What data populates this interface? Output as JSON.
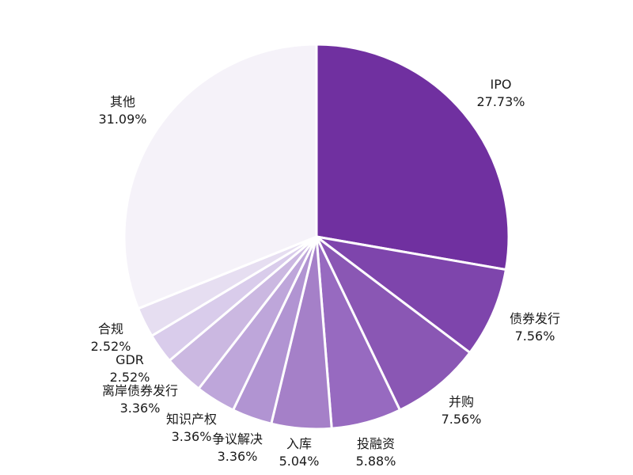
{
  "chart_data": {
    "type": "pie",
    "title": "",
    "start": "12 o'clock, clockwise",
    "legend": "none (labels beside slices)",
    "slices": [
      {
        "label": "IPO",
        "value": 27.73,
        "pct_text": "27.73%",
        "color": "#7030a0"
      },
      {
        "label": "债券发行",
        "value": 7.56,
        "pct_text": "7.56%",
        "color": "#7e45ac"
      },
      {
        "label": "并购",
        "value": 7.56,
        "pct_text": "7.56%",
        "color": "#8a57b4"
      },
      {
        "label": "投融资",
        "value": 5.88,
        "pct_text": "5.88%",
        "color": "#976ac0"
      },
      {
        "label": "入库",
        "value": 5.04,
        "pct_text": "5.04%",
        "color": "#a580c8"
      },
      {
        "label": "争议解决",
        "value": 3.36,
        "pct_text": "3.36%",
        "color": "#b194d2"
      },
      {
        "label": "知识产权",
        "value": 3.36,
        "pct_text": "3.36%",
        "color": "#bea6da"
      },
      {
        "label": "离岸债券发行",
        "value": 3.36,
        "pct_text": "3.36%",
        "color": "#cbb8e1"
      },
      {
        "label": "GDR",
        "value": 2.52,
        "pct_text": "2.52%",
        "color": "#d9cceb"
      },
      {
        "label": "合规",
        "value": 2.52,
        "pct_text": "2.52%",
        "color": "#e6def1"
      },
      {
        "label": "其他",
        "value": 31.09,
        "pct_text": "31.09%",
        "color": "#f5f2f9"
      }
    ]
  }
}
